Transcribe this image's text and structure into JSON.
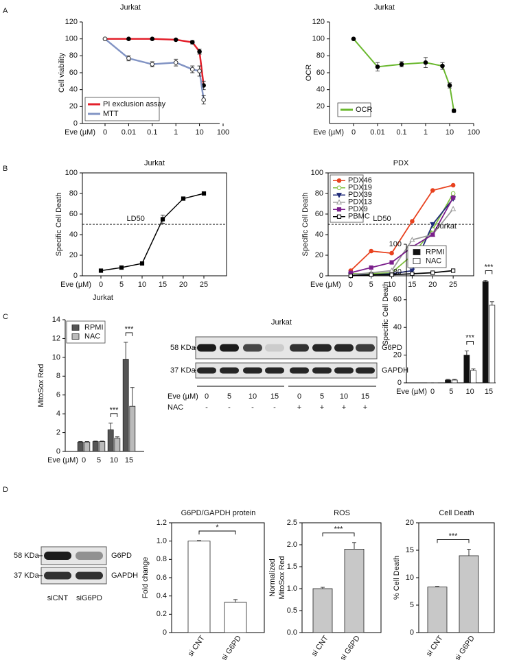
{
  "panel_labels": [
    "A",
    "B",
    "C",
    "D"
  ],
  "chart_data": [
    {
      "type": "line",
      "title": "Jurkat",
      "x_label": "Eve (µM)",
      "y_label": [
        "Cell viability"
      ],
      "x": [
        0,
        0.01,
        0.1,
        1,
        5,
        10,
        15
      ],
      "xscale": "log",
      "xlim": [
        0,
        100
      ],
      "xticks": [
        0,
        0.01,
        0.1,
        1,
        10,
        100
      ],
      "ylim": [
        0,
        120
      ],
      "yticks": [
        0,
        20,
        40,
        60,
        80,
        100,
        120
      ],
      "legend": "lower left",
      "series": [
        {
          "name": "PI exclusion assay",
          "color": "#e3202b",
          "marker": "circle",
          "marker_color": "#000000",
          "values": [
            100,
            100,
            100,
            99,
            96,
            85,
            45
          ],
          "errors": [
            1,
            1,
            1,
            1,
            2,
            3,
            5
          ]
        },
        {
          "name": "MTT",
          "color": "#8294c4",
          "marker": "open-circle",
          "marker_color": "#333333",
          "values": [
            100,
            77,
            70,
            72,
            64,
            62,
            28
          ],
          "errors": [
            1,
            3,
            3,
            4,
            4,
            6,
            5
          ]
        }
      ]
    },
    {
      "type": "line",
      "title": "Jurkat",
      "x_label": "Eve (µM)",
      "y_label": [
        "OCR"
      ],
      "x": [
        0,
        0.01,
        0.1,
        1,
        5,
        10,
        15
      ],
      "xscale": "log",
      "xlim": [
        0,
        100
      ],
      "xticks": [
        0,
        0.01,
        0.1,
        1,
        10,
        100
      ],
      "ylim": [
        0,
        120
      ],
      "yticks": [
        20,
        40,
        60,
        80,
        100,
        120
      ],
      "legend": "lower left",
      "series": [
        {
          "name": "OCR",
          "color": "#6ab82e",
          "marker": "circle",
          "marker_color": "#000000",
          "values": [
            100,
            67,
            70,
            72,
            68,
            45,
            15
          ],
          "errors": [
            1,
            5,
            3,
            6,
            4,
            3,
            2
          ]
        }
      ]
    },
    {
      "type": "line",
      "title": "Jurkat",
      "x_label": "Eve (µM)",
      "y_label": [
        "Specific Cell Death"
      ],
      "x": [
        0,
        5,
        10,
        15,
        20,
        25
      ],
      "xlim": [
        -4.5,
        30.5
      ],
      "xticks": [
        0,
        5,
        10,
        15,
        20,
        25
      ],
      "ylim": [
        0,
        100
      ],
      "yticks": [
        0,
        20,
        40,
        60,
        80,
        100
      ],
      "hline": {
        "value": 50,
        "label": "LD50"
      },
      "series": [
        {
          "color": "#000000",
          "marker": "square",
          "values": [
            5,
            8,
            12,
            55,
            75,
            80
          ],
          "errors": [
            0.5,
            0.5,
            0.5,
            4,
            1,
            1
          ]
        }
      ]
    },
    {
      "type": "line",
      "title": "PDX",
      "x_label": "Eve (µM)",
      "y_label": [
        "Specific Cell Death"
      ],
      "x": [
        0,
        5,
        10,
        15,
        20,
        25
      ],
      "xlim": [
        -5.5,
        30
      ],
      "xticks": [
        0,
        5,
        10,
        15,
        20,
        25
      ],
      "ylim": [
        0,
        100
      ],
      "yticks": [
        0,
        20,
        40,
        60,
        80,
        100
      ],
      "legend": "upper left",
      "hline": {
        "value": 50,
        "label": "LD50"
      },
      "series": [
        {
          "name": "PDX46",
          "color": "#e8421f",
          "marker": "circle",
          "values": [
            5,
            24,
            22,
            53,
            83,
            88
          ]
        },
        {
          "name": "PDX19",
          "color": "#7fbf3f",
          "marker": "open-circle",
          "values": [
            2,
            2,
            3,
            20,
            45,
            80
          ]
        },
        {
          "name": "PDX39",
          "color": "#1f2a78",
          "marker": "triangle-down",
          "values": [
            1,
            1,
            2,
            5,
            50,
            75
          ]
        },
        {
          "name": "PDX13",
          "color": "#9a9a9a",
          "marker": "open-triangle",
          "values": [
            1,
            3,
            5,
            35,
            40,
            65
          ]
        },
        {
          "name": "PDX9",
          "color": "#7b1f8c",
          "marker": "square",
          "values": [
            3,
            8,
            13,
            28,
            40,
            76
          ]
        },
        {
          "name": "PBMC",
          "color": "#000000",
          "marker": "open-square",
          "values": [
            0,
            1,
            1,
            2,
            3,
            5
          ]
        }
      ]
    },
    {
      "type": "bar",
      "title": "Jurkat",
      "x_label": "Eve (µM)",
      "y_label": [
        "MitoSox Red"
      ],
      "categories": [
        "0",
        "5",
        "10",
        "15"
      ],
      "ylim": [
        0,
        14
      ],
      "yticks": [
        0,
        2,
        4,
        6,
        8,
        10,
        12,
        14
      ],
      "legend": "upper left",
      "series": [
        {
          "name": "RPMI",
          "color": "#555555",
          "values": [
            1,
            1.05,
            2.3,
            9.8
          ],
          "errors": [
            0.05,
            0.05,
            0.7,
            1.8
          ]
        },
        {
          "name": "NAC",
          "color": "#bbbbbb",
          "values": [
            1,
            1.05,
            1.4,
            4.8
          ],
          "errors": [
            0.05,
            0.05,
            0.15,
            2
          ]
        }
      ],
      "annotations": [
        {
          "text": "***",
          "categories": [
            "10"
          ]
        },
        {
          "text": "***",
          "categories": [
            "15"
          ]
        }
      ]
    },
    {
      "type": "bar",
      "title": "Jurkat",
      "x_label": "Eve (µM)",
      "y_label": [
        "Specific Cell Death"
      ],
      "categories": [
        "0",
        "5",
        "10",
        "15"
      ],
      "ylim": [
        0,
        100
      ],
      "yticks": [
        0,
        20,
        40,
        60,
        80,
        100
      ],
      "legend": "upper left",
      "series": [
        {
          "name": "RPMI",
          "color": "#111111",
          "values": [
            0,
            2,
            20,
            73
          ],
          "errors": [
            0,
            0.5,
            3,
            1
          ]
        },
        {
          "name": "NAC",
          "color": "#ffffff",
          "values": [
            0,
            2,
            9,
            56
          ],
          "errors": [
            0,
            0.5,
            1,
            2.5
          ]
        }
      ],
      "annotations": [
        {
          "text": "***",
          "categories": [
            "10"
          ]
        },
        {
          "text": "***",
          "categories": [
            "15"
          ]
        }
      ]
    },
    {
      "type": "bar",
      "title": "G6PD/GAPDH protein",
      "y_label": [
        "Fold change"
      ],
      "categories": [
        "si CNT",
        "si G6PD"
      ],
      "values": [
        1.0,
        0.33
      ],
      "errors": [
        0.005,
        0.03
      ],
      "color": "#ffffff",
      "ylim": [
        0,
        1.2
      ],
      "yticks": [
        0,
        0.2,
        0.4,
        0.6,
        0.8,
        {
          "value": 1,
          "label": "1.0"
        },
        1.2
      ],
      "annotations": [
        {
          "text": "*",
          "categories": [
            "si CNT",
            "si G6PD"
          ]
        }
      ]
    },
    {
      "type": "bar",
      "title": "ROS",
      "y_label": [
        "Normalized",
        "MitoSox Red"
      ],
      "categories": [
        "si CNT",
        "si G6PD"
      ],
      "values": [
        1.0,
        1.9
      ],
      "errors": [
        0.03,
        0.15
      ],
      "color": "#c8c8c8",
      "ylim": [
        0,
        2.5
      ],
      "yticks": [
        {
          "value": 0,
          "label": "0.0"
        },
        0.5,
        {
          "value": 1,
          "label": "1.0"
        },
        1.5,
        {
          "value": 2,
          "label": "2.0"
        },
        2.5
      ],
      "annotations": [
        {
          "text": "***",
          "categories": [
            "si CNT",
            "si G6PD"
          ]
        }
      ]
    },
    {
      "type": "bar",
      "title": "Cell Death",
      "y_label": [
        "% Cell Death"
      ],
      "categories": [
        "si CNT",
        "si G6PD"
      ],
      "values": [
        8.3,
        14
      ],
      "errors": [
        0.1,
        1.2
      ],
      "color": "#c8c8c8",
      "ylim": [
        0,
        20
      ],
      "yticks": [
        0,
        5,
        10,
        15,
        20
      ],
      "annotations": [
        {
          "text": "***",
          "categories": [
            "si CNT",
            "si G6PD"
          ]
        }
      ]
    }
  ],
  "blot_c": {
    "title": "Jurkat",
    "markers": [
      "58 KDa",
      "37 KDa"
    ],
    "proteins": [
      "G6PD",
      "GAPDH"
    ],
    "row_labels": [
      "Eve (µM)",
      "NAC"
    ],
    "eve": [
      0,
      5,
      10,
      15,
      0,
      5,
      10,
      15
    ],
    "nac": [
      "-",
      "-",
      "-",
      "-",
      "+",
      "+",
      "+",
      "+"
    ]
  },
  "blot_d": {
    "markers": [
      "58 KDa",
      "37 KDa"
    ],
    "proteins": [
      "G6PD",
      "GAPDH"
    ],
    "lanes": [
      "siCNT",
      "siG6PD"
    ]
  }
}
